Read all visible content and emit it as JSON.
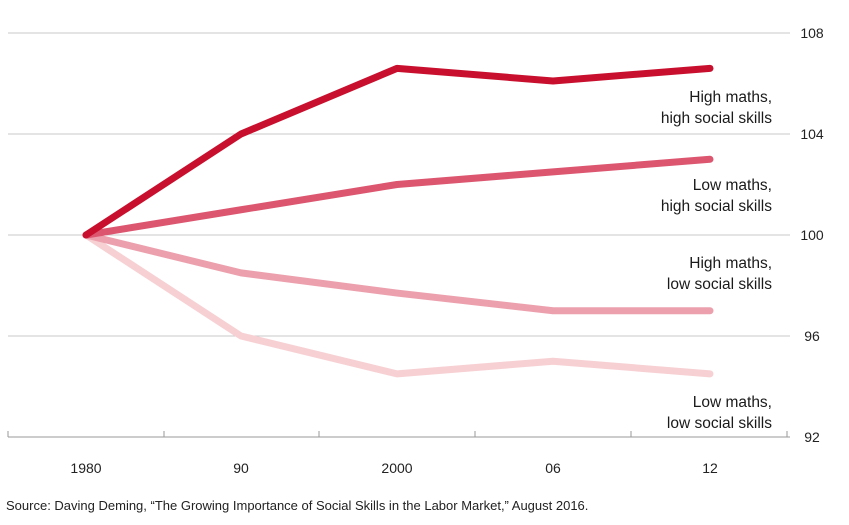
{
  "chart_data": {
    "type": "line",
    "x": [
      "1980",
      "90",
      "2000",
      "06",
      "12"
    ],
    "y_ticks": [
      92,
      96,
      100,
      104,
      108
    ],
    "ylim": [
      92,
      108
    ],
    "grid": "horizontal",
    "y_axis_side": "right",
    "series": [
      {
        "name": "High maths, high social skills",
        "label_lines": [
          "High maths,",
          "high social skills"
        ],
        "color": "#c8102e",
        "values": [
          100,
          104,
          106.6,
          106.1,
          106.6
        ]
      },
      {
        "name": "Low maths, high social skills",
        "label_lines": [
          "Low maths,",
          "high social skills"
        ],
        "color": "#dc5670",
        "values": [
          100,
          101,
          102,
          102.5,
          103
        ]
      },
      {
        "name": "High maths, low social skills",
        "label_lines": [
          "High maths,",
          "low social skills"
        ],
        "color": "#eca0ad",
        "values": [
          100,
          98.5,
          97.7,
          97,
          97
        ]
      },
      {
        "name": "Low maths, low social skills",
        "label_lines": [
          "Low maths,",
          "low social skills"
        ],
        "color": "#f7d0d3",
        "values": [
          100,
          96,
          94.5,
          95,
          94.5
        ]
      }
    ]
  },
  "source": "Source: Daving Deming, “The Growing Importance of Social Skills in the Labor Market,” August 2016."
}
